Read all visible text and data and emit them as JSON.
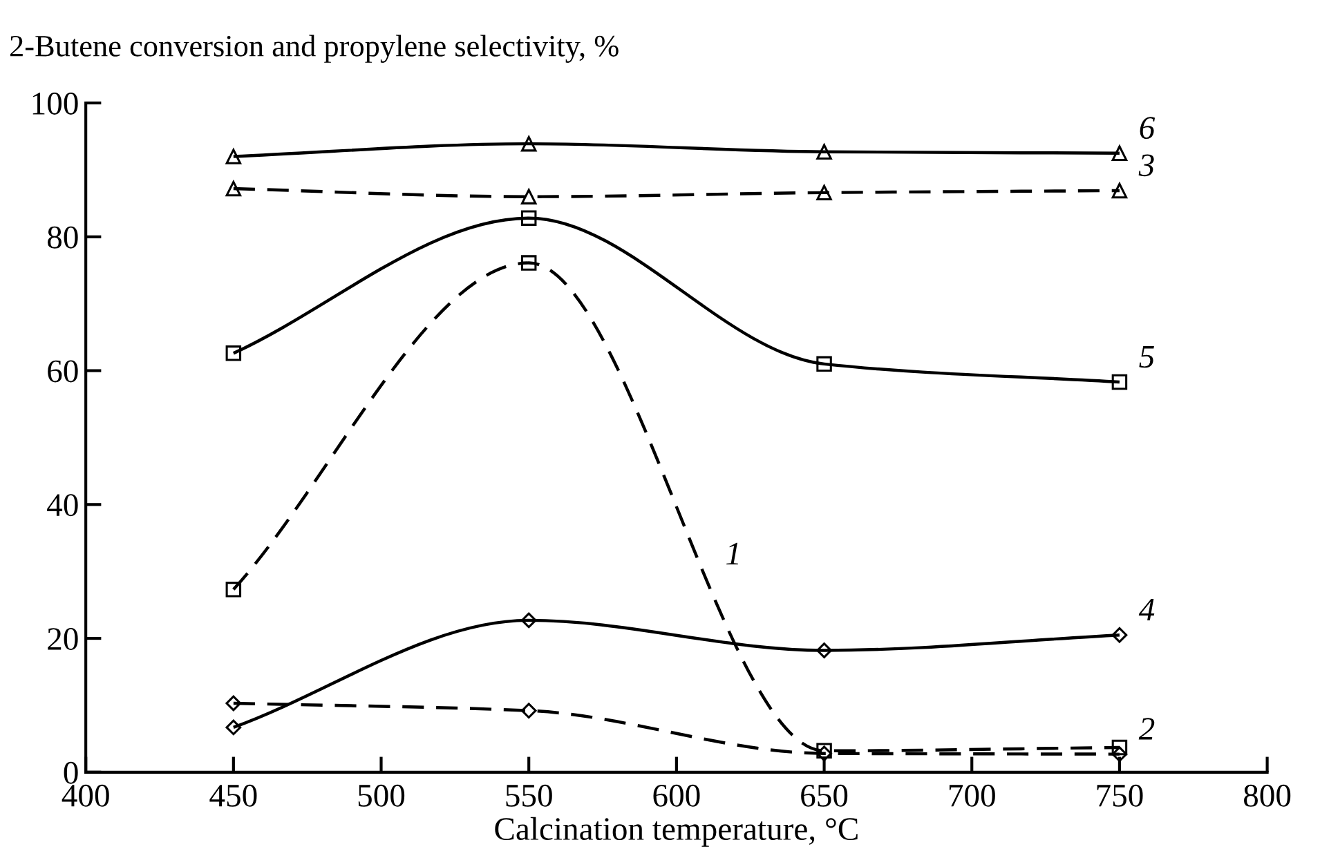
{
  "chart_data": {
    "type": "line",
    "ylabel": "2-Butene conversion and propylene selectivity, %",
    "xlabel": "Calcination temperature, °C",
    "x": [
      450,
      550,
      650,
      750
    ],
    "series": [
      {
        "name": "1",
        "color": "#000000",
        "marker": "square",
        "line_style": "dashed",
        "values": [
          27.3,
          76.1,
          3.2,
          3.7
        ]
      },
      {
        "name": "2",
        "color": "#000000",
        "marker": "diamond",
        "line_style": "dashed",
        "values": [
          10.3,
          9.2,
          2.8,
          2.7
        ]
      },
      {
        "name": "3",
        "color": "#000000",
        "marker": "triangle",
        "line_style": "dashed",
        "values": [
          87.2,
          86.0,
          86.6,
          86.9
        ]
      },
      {
        "name": "4",
        "color": "#000000",
        "marker": "diamond",
        "line_style": "solid",
        "values": [
          6.7,
          22.7,
          18.2,
          20.5
        ]
      },
      {
        "name": "5",
        "color": "#000000",
        "marker": "square",
        "line_style": "solid",
        "values": [
          62.6,
          82.8,
          61.0,
          58.3
        ]
      },
      {
        "name": "6",
        "color": "#000000",
        "marker": "triangle",
        "line_style": "solid",
        "values": [
          92.0,
          93.9,
          92.7,
          92.5
        ]
      }
    ],
    "xlim": [
      400,
      800
    ],
    "xticks": [
      400,
      450,
      500,
      550,
      600,
      650,
      700,
      750,
      800
    ],
    "ylim": [
      0,
      100
    ],
    "yticks": [
      0,
      20,
      40,
      60,
      80,
      100
    ],
    "grid": false,
    "legend": false
  }
}
